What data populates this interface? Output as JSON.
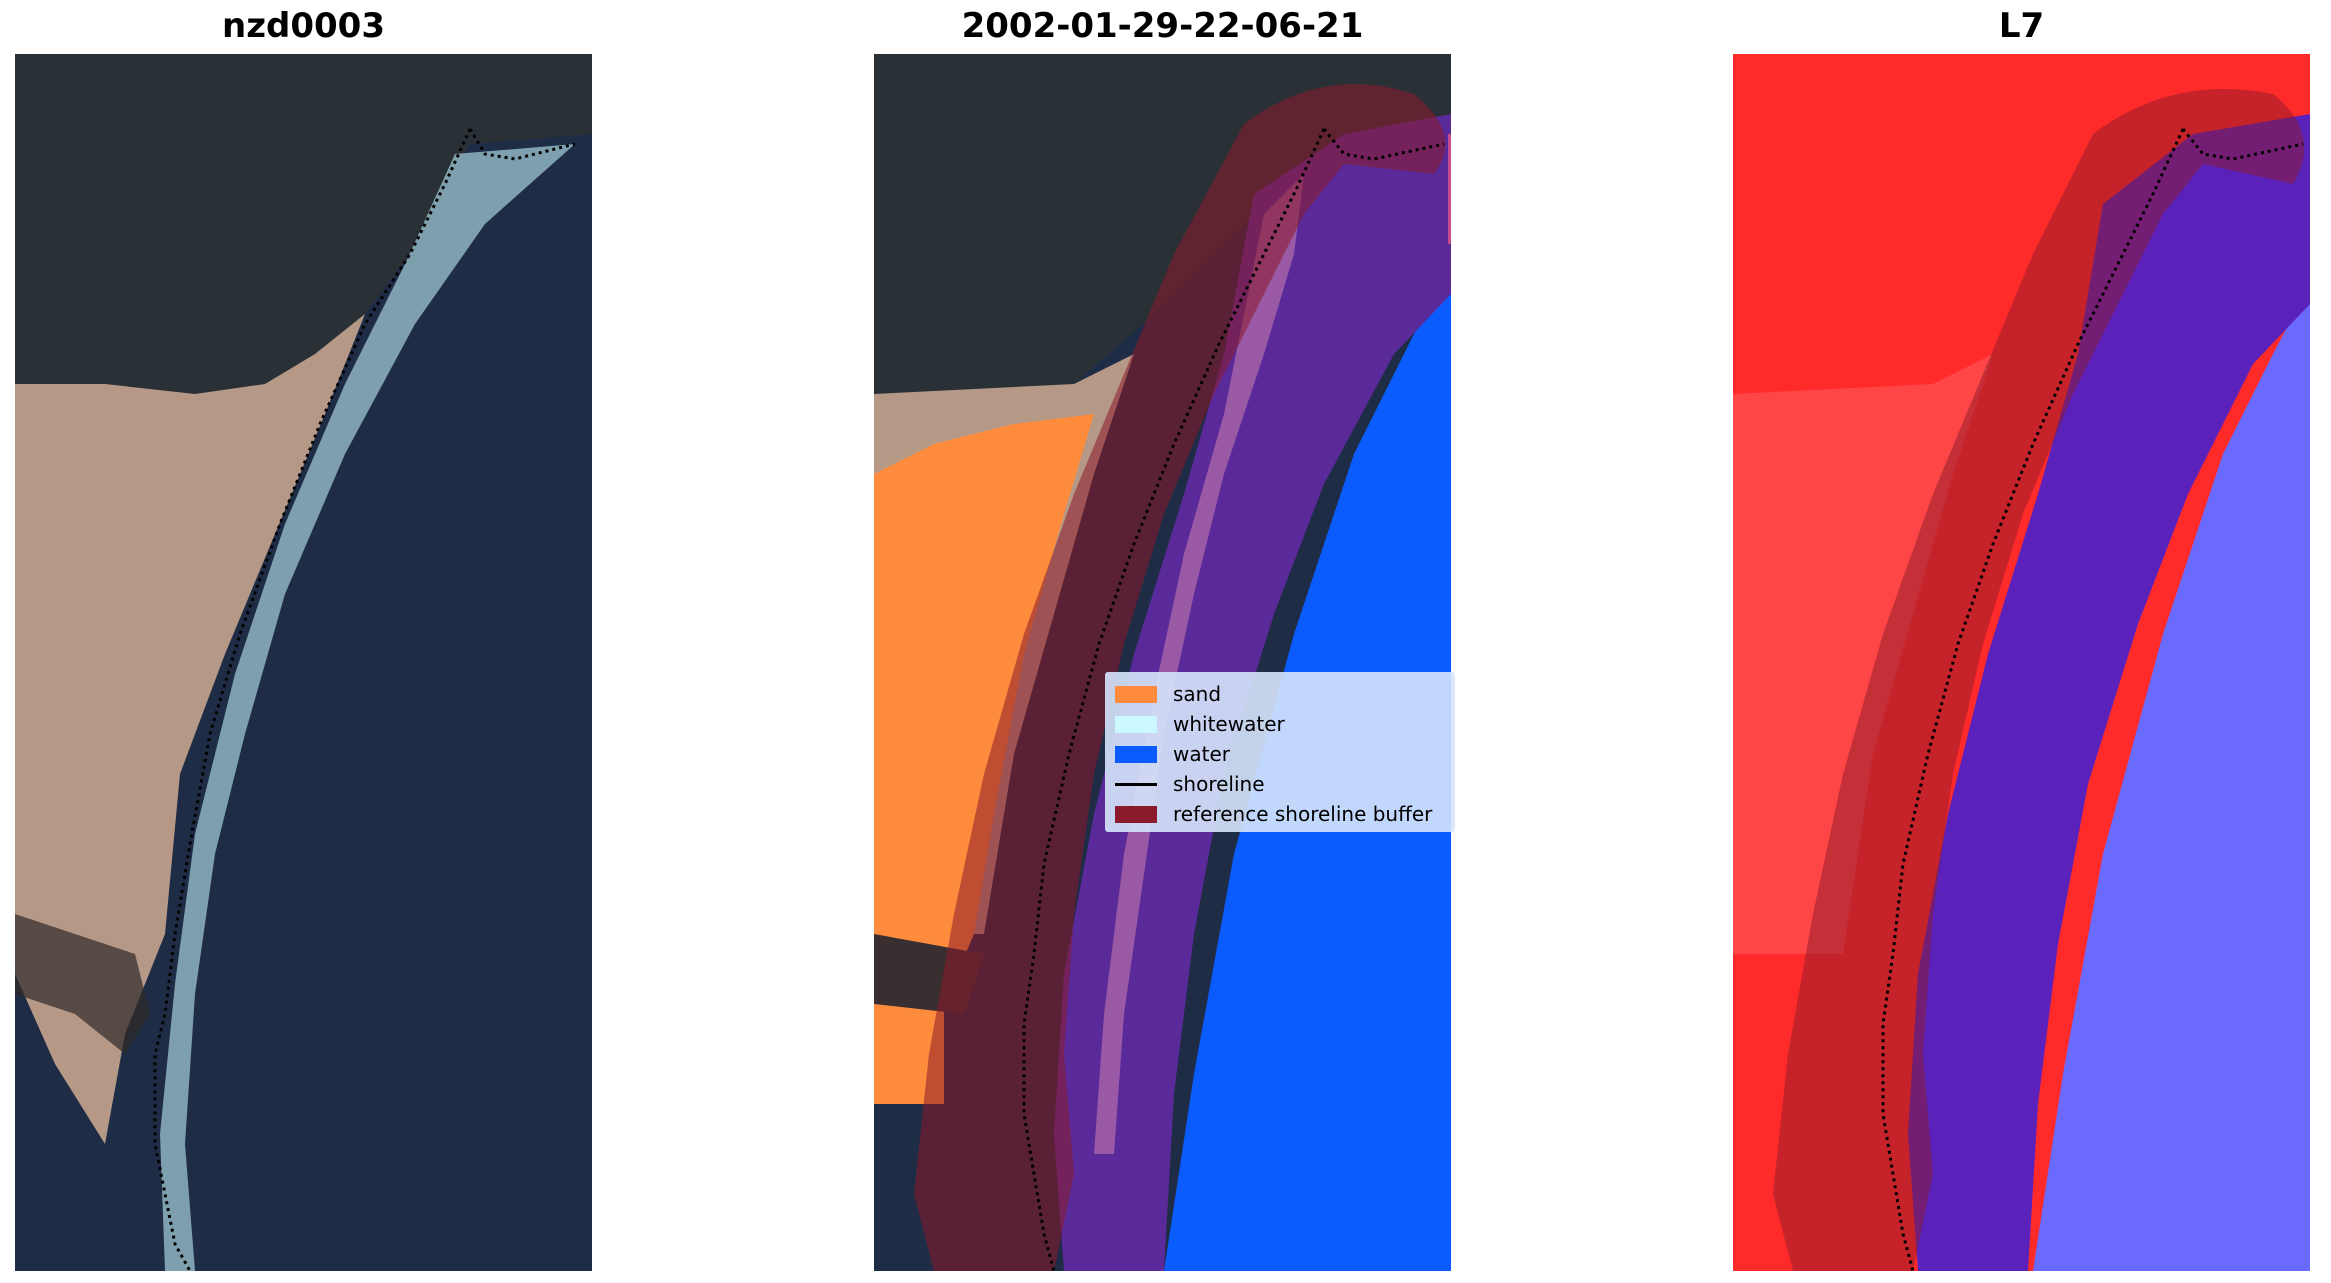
{
  "panels": [
    {
      "title": "nzd0003"
    },
    {
      "title": "2002-01-29-22-06-21"
    },
    {
      "title": "L7"
    }
  ],
  "legend": [
    {
      "label": "sand",
      "color": "#ff8c3c",
      "kind": "patch"
    },
    {
      "label": "whitewater",
      "color": "#ccf8ff",
      "kind": "patch"
    },
    {
      "label": "water",
      "color": "#0a5cff",
      "kind": "patch"
    },
    {
      "label": "shoreline",
      "color": "#000000",
      "kind": "line"
    },
    {
      "label": "reference shoreline buffer",
      "color": "#8b1a2a",
      "kind": "patch"
    }
  ],
  "colors": {
    "forest": "#2a3136",
    "beach": "#b69886",
    "sea": "#1f2c45",
    "surf": "#8fb4c0",
    "sand": "#ff8c3c",
    "water": "#0a5cff",
    "buffer": "#8b1a2a",
    "water_class": "#5a2a9a",
    "ndwi_land": "#ff2a2a",
    "ndwi_water": "#6a6aff"
  }
}
